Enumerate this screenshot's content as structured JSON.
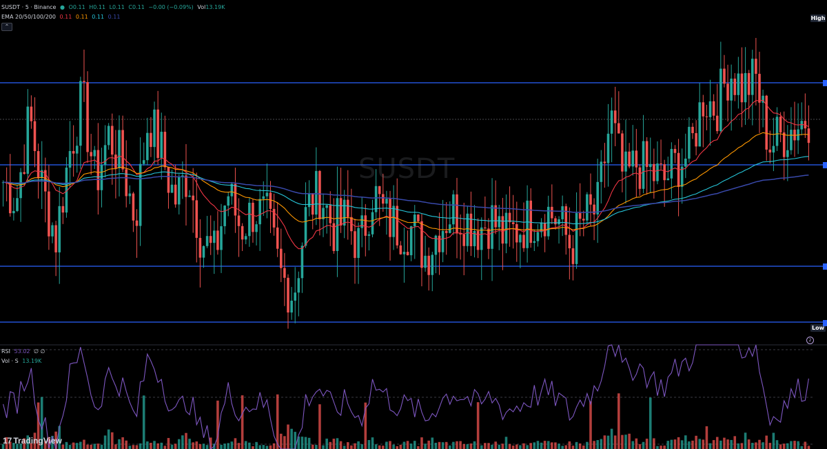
{
  "header": {
    "symbol_line": "SUSDT · 5 · Binance",
    "status_dot_color": "#26a69a",
    "open": "O0.11",
    "high": "H0.11",
    "low": "L0.11",
    "close": "C0.11",
    "change": "−0.00 (−0.09%)",
    "vol_label": "Vol",
    "vol_value": "13.19K"
  },
  "ema_legend": {
    "label": "EMA 20/50/100/200",
    "values": [
      "0.11",
      "0.11",
      "0.11",
      "0.11"
    ],
    "colors": [
      "#f23645",
      "#ff9800",
      "#26c6da",
      "#3949ab"
    ]
  },
  "collapse_glyph": "⌃",
  "watermark": "SUSDT",
  "price_badges": {
    "high": "High",
    "low": "Low"
  },
  "rsi_legend": {
    "label": "RSI",
    "value": "53.02",
    "extra": "∅ ∅"
  },
  "vol_legend": {
    "label": "Vol · S",
    "value": "13.19K"
  },
  "logo": {
    "mark": "17",
    "text": "TradingView"
  },
  "alert_glyph": "2",
  "colors": {
    "bull": "#26a69a",
    "bear": "#ef5350",
    "level_line": "#2962ff",
    "ema20": "#f23645",
    "ema50": "#ff9800",
    "ema100": "#26c6da",
    "ema200": "#3949ab",
    "rsi": "#7e57c2"
  },
  "chart_data": {
    "type": "candlestick",
    "title": "SUSDT · 5 · Binance",
    "price_levels_estimated": [
      0.1135,
      0.1128,
      0.112,
      0.1115
    ],
    "estimated_price_path": [
      0.1124,
      0.1122,
      0.1131,
      0.1123,
      0.1118,
      0.1127,
      0.1133,
      0.1124,
      0.1129,
      0.1126,
      0.112,
      0.1131,
      0.1127,
      0.1122,
      0.1125,
      0.1118,
      0.1116,
      0.1123,
      0.1119,
      0.1121,
      0.112,
      0.1114,
      0.1112,
      0.1121,
      0.1123,
      0.1119,
      0.112,
      0.1117,
      0.1123,
      0.112,
      0.1119,
      0.1119,
      0.1116,
      0.1119,
      0.1121,
      0.112,
      0.1119,
      0.112,
      0.1118,
      0.1119,
      0.112,
      0.1121,
      0.112,
      0.1117,
      0.112,
      0.1121,
      0.1131,
      0.1124,
      0.1126,
      0.1125,
      0.1124,
      0.1126,
      0.1127,
      0.1133,
      0.1132,
      0.1136,
      0.1134,
      0.1135,
      0.1128,
      0.1129,
      0.113,
      0.1131
    ],
    "rsi_estimated": [
      45,
      48,
      62,
      38,
      30,
      58,
      70,
      44,
      60,
      55,
      40,
      68,
      58,
      42,
      50,
      35,
      30,
      52,
      44,
      48,
      46,
      28,
      22,
      50,
      54,
      44,
      48,
      40,
      56,
      50,
      46,
      46,
      40,
      48,
      52,
      50,
      46,
      50,
      44,
      46,
      50,
      52,
      50,
      42,
      50,
      54,
      78,
      60,
      64,
      58,
      54,
      62,
      66,
      80,
      74,
      82,
      70,
      72,
      40,
      46,
      52,
      55
    ],
    "volume_estimated": [
      3,
      2,
      4,
      3,
      8,
      2,
      3,
      2,
      5,
      3,
      2,
      3,
      2,
      3,
      4,
      2,
      3,
      2,
      3,
      2,
      2,
      4,
      6,
      3,
      2,
      3,
      2,
      2,
      3,
      2,
      2,
      2,
      3,
      2,
      2,
      2,
      2,
      2,
      3,
      2,
      2,
      2,
      2,
      2,
      2,
      3,
      5,
      4,
      3,
      3,
      2,
      3,
      4,
      6,
      4,
      5,
      4,
      3,
      4,
      3,
      2,
      2
    ],
    "ylabel": ""
  }
}
